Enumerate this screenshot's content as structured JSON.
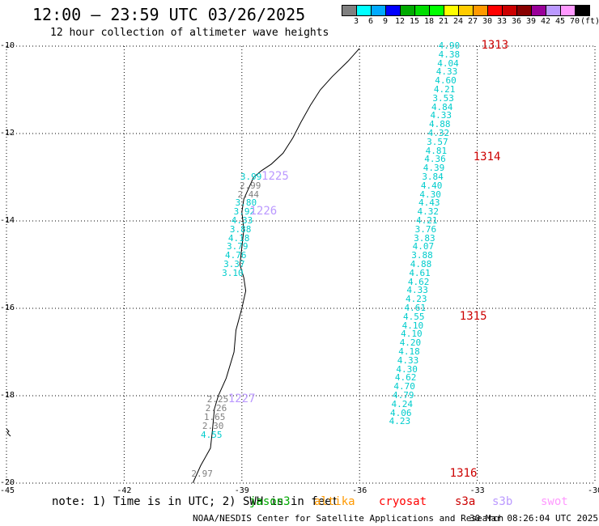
{
  "header": {
    "title": "12:00 — 23:59 UTC 03/26/2025",
    "subtitle": "12 hour collection of altimeter wave heights"
  },
  "colorbar": {
    "unit": "(ft)",
    "colors": [
      "#808080",
      "#00ffff",
      "#00aaff",
      "#0000ff",
      "#00aa00",
      "#00dd00",
      "#00ff00",
      "#ffff00",
      "#ffcc00",
      "#ff9900",
      "#ff0000",
      "#cc0000",
      "#880000",
      "#990099",
      "#bb99ff",
      "#ff99ff",
      "#000000"
    ],
    "labels": [
      "3",
      "6",
      "9",
      "12",
      "15",
      "18",
      "21",
      "24",
      "27",
      "30",
      "33",
      "36",
      "39",
      "42",
      "45",
      "70"
    ]
  },
  "map": {
    "lon_range": [
      -45,
      -30
    ],
    "lat_range": [
      -20,
      -10
    ],
    "y_ticks": [
      "-10",
      "-12",
      "-14",
      "-16",
      "-18",
      "-20"
    ],
    "x_ticks": [
      "-45",
      "-42",
      "-39",
      "-36",
      "-33",
      "-30"
    ],
    "grid": "dotted",
    "coastline_color": "#000000",
    "coastline": [
      [
        -36.0,
        -10.05
      ],
      [
        -36.3,
        -10.35
      ],
      [
        -36.7,
        -10.7
      ],
      [
        -37.0,
        -11.0
      ],
      [
        -37.25,
        -11.35
      ],
      [
        -37.5,
        -11.75
      ],
      [
        -37.7,
        -12.1
      ],
      [
        -37.95,
        -12.45
      ],
      [
        -38.25,
        -12.7
      ],
      [
        -38.5,
        -12.85
      ],
      [
        -38.7,
        -13.0
      ],
      [
        -38.8,
        -13.2
      ],
      [
        -38.95,
        -13.5
      ],
      [
        -39.0,
        -13.8
      ],
      [
        -38.95,
        -14.2
      ],
      [
        -39.0,
        -14.6
      ],
      [
        -39.05,
        -15.0
      ],
      [
        -38.95,
        -15.3
      ],
      [
        -38.9,
        -15.6
      ],
      [
        -39.0,
        -16.0
      ],
      [
        -39.15,
        -16.5
      ],
      [
        -39.2,
        -17.0
      ],
      [
        -39.4,
        -17.6
      ],
      [
        -39.6,
        -18.0
      ],
      [
        -39.7,
        -18.3
      ],
      [
        -39.75,
        -18.8
      ],
      [
        -39.8,
        -19.2
      ],
      [
        -40.05,
        -19.6
      ],
      [
        -40.25,
        -20.0
      ]
    ]
  },
  "notes": {
    "note": "note: 1) Time is in UTC; 2) SWH is in feet"
  },
  "satellites": [
    {
      "name": "jason3",
      "color": "#00aa00"
    },
    {
      "name": "altika",
      "color": "#ff9900"
    },
    {
      "name": "cryosat",
      "color": "#ff0000"
    },
    {
      "name": "s3a",
      "color": "#cc0000"
    },
    {
      "name": "s3b",
      "color": "#bb99ff"
    },
    {
      "name": "swot",
      "color": "#ff99ff"
    }
  ],
  "footer": {
    "credit": "NOAA/NESDIS Center for Satellite Applications and Research",
    "generated": "30 Mar 08:26:04 UTC 2025"
  },
  "track_labels": [
    {
      "text": "1313",
      "lon": -32.9,
      "lat": -10.0,
      "color": "#cc0000"
    },
    {
      "text": "1314",
      "lon": -33.1,
      "lat": -12.55,
      "color": "#cc0000"
    },
    {
      "text": "1315",
      "lon": -33.45,
      "lat": -16.2,
      "color": "#cc0000"
    },
    {
      "text": "1316",
      "lon": -33.7,
      "lat": -19.8,
      "color": "#cc0000"
    },
    {
      "text": "1225",
      "lon": -38.5,
      "lat": -13.0,
      "color": "#bb99ff"
    },
    {
      "text": "1226",
      "lon": -38.8,
      "lat": -13.8,
      "color": "#bb99ff"
    },
    {
      "text": "1227",
      "lon": -39.35,
      "lat": -18.1,
      "color": "#bb99ff"
    }
  ],
  "observations": [
    {
      "v": "4.90",
      "lon": -33.7,
      "lat": -10.0,
      "c": "#00cccc"
    },
    {
      "v": "4.38",
      "lon": -33.7,
      "lat": -10.2,
      "c": "#00cccc"
    },
    {
      "v": "4.04",
      "lon": -33.73,
      "lat": -10.4,
      "c": "#00cccc"
    },
    {
      "v": "4.33",
      "lon": -33.76,
      "lat": -10.6,
      "c": "#00cccc"
    },
    {
      "v": "4.60",
      "lon": -33.79,
      "lat": -10.8,
      "c": "#00cccc"
    },
    {
      "v": "4.21",
      "lon": -33.82,
      "lat": -11.0,
      "c": "#00cccc"
    },
    {
      "v": "3.53",
      "lon": -33.85,
      "lat": -11.2,
      "c": "#00cccc"
    },
    {
      "v": "4.84",
      "lon": -33.88,
      "lat": -11.4,
      "c": "#00cccc"
    },
    {
      "v": "4.33",
      "lon": -33.91,
      "lat": -11.6,
      "c": "#00cccc"
    },
    {
      "v": "4.88",
      "lon": -33.94,
      "lat": -11.8,
      "c": "#00cccc"
    },
    {
      "v": "4.32",
      "lon": -33.97,
      "lat": -12.0,
      "c": "#00cccc"
    },
    {
      "v": "3.57",
      "lon": -34.0,
      "lat": -12.2,
      "c": "#00cccc"
    },
    {
      "v": "4.81",
      "lon": -34.03,
      "lat": -12.4,
      "c": "#00cccc"
    },
    {
      "v": "4.36",
      "lon": -34.06,
      "lat": -12.6,
      "c": "#00cccc"
    },
    {
      "v": "4.39",
      "lon": -34.09,
      "lat": -12.8,
      "c": "#00cccc"
    },
    {
      "v": "3.84",
      "lon": -34.12,
      "lat": -13.0,
      "c": "#00cccc"
    },
    {
      "v": "4.40",
      "lon": -34.15,
      "lat": -13.2,
      "c": "#00cccc"
    },
    {
      "v": "4.30",
      "lon": -34.18,
      "lat": -13.4,
      "c": "#00cccc"
    },
    {
      "v": "4.43",
      "lon": -34.21,
      "lat": -13.6,
      "c": "#00cccc"
    },
    {
      "v": "4.32",
      "lon": -34.24,
      "lat": -13.8,
      "c": "#00cccc"
    },
    {
      "v": "4.21",
      "lon": -34.27,
      "lat": -14.0,
      "c": "#00cccc"
    },
    {
      "v": "3.76",
      "lon": -34.3,
      "lat": -14.2,
      "c": "#00cccc"
    },
    {
      "v": "3.83",
      "lon": -34.33,
      "lat": -14.4,
      "c": "#00cccc"
    },
    {
      "v": "4.07",
      "lon": -34.36,
      "lat": -14.6,
      "c": "#00cccc"
    },
    {
      "v": "3.88",
      "lon": -34.39,
      "lat": -14.8,
      "c": "#00cccc"
    },
    {
      "v": "4.88",
      "lon": -34.42,
      "lat": -15.0,
      "c": "#00cccc"
    },
    {
      "v": "4.61",
      "lon": -34.45,
      "lat": -15.2,
      "c": "#00cccc"
    },
    {
      "v": "4.62",
      "lon": -34.48,
      "lat": -15.4,
      "c": "#00cccc"
    },
    {
      "v": "4.33",
      "lon": -34.51,
      "lat": -15.6,
      "c": "#00cccc"
    },
    {
      "v": "4.23",
      "lon": -34.54,
      "lat": -15.8,
      "c": "#00cccc"
    },
    {
      "v": "4.61",
      "lon": -34.57,
      "lat": -16.0,
      "c": "#00cccc"
    },
    {
      "v": "4.55",
      "lon": -34.6,
      "lat": -16.2,
      "c": "#00cccc"
    },
    {
      "v": "4.10",
      "lon": -34.63,
      "lat": -16.4,
      "c": "#00cccc"
    },
    {
      "v": "4.10",
      "lon": -34.66,
      "lat": -16.6,
      "c": "#00cccc"
    },
    {
      "v": "4.20",
      "lon": -34.69,
      "lat": -16.8,
      "c": "#00cccc"
    },
    {
      "v": "4.18",
      "lon": -34.72,
      "lat": -17.0,
      "c": "#00cccc"
    },
    {
      "v": "4.33",
      "lon": -34.75,
      "lat": -17.2,
      "c": "#00cccc"
    },
    {
      "v": "4.30",
      "lon": -34.78,
      "lat": -17.4,
      "c": "#00cccc"
    },
    {
      "v": "4.62",
      "lon": -34.81,
      "lat": -17.6,
      "c": "#00cccc"
    },
    {
      "v": "4.70",
      "lon": -34.84,
      "lat": -17.8,
      "c": "#00cccc"
    },
    {
      "v": "4.79",
      "lon": -34.87,
      "lat": -18.0,
      "c": "#00cccc"
    },
    {
      "v": "4.24",
      "lon": -34.9,
      "lat": -18.2,
      "c": "#00cccc"
    },
    {
      "v": "4.06",
      "lon": -34.93,
      "lat": -18.4,
      "c": "#00cccc"
    },
    {
      "v": "4.23",
      "lon": -34.96,
      "lat": -18.6,
      "c": "#00cccc"
    },
    {
      "v": "3.99",
      "lon": -38.75,
      "lat": -13.0,
      "c": "#00cccc"
    },
    {
      "v": "2.99",
      "lon": -38.77,
      "lat": -13.2,
      "c": "#808080"
    },
    {
      "v": "2.44",
      "lon": -38.82,
      "lat": -13.4,
      "c": "#808080"
    },
    {
      "v": "3.80",
      "lon": -38.88,
      "lat": -13.6,
      "c": "#00cccc"
    },
    {
      "v": "3.92",
      "lon": -38.92,
      "lat": -13.8,
      "c": "#00cccc"
    },
    {
      "v": "4.33",
      "lon": -38.98,
      "lat": -14.0,
      "c": "#00cccc"
    },
    {
      "v": "3.88",
      "lon": -39.02,
      "lat": -14.2,
      "c": "#00cccc"
    },
    {
      "v": "4.18",
      "lon": -39.06,
      "lat": -14.4,
      "c": "#00cccc"
    },
    {
      "v": "3.79",
      "lon": -39.1,
      "lat": -14.6,
      "c": "#00cccc"
    },
    {
      "v": "4.76",
      "lon": -39.14,
      "lat": -14.8,
      "c": "#00cccc"
    },
    {
      "v": "3.37",
      "lon": -39.18,
      "lat": -15.0,
      "c": "#00cccc"
    },
    {
      "v": "3.10",
      "lon": -39.22,
      "lat": -15.2,
      "c": "#00cccc"
    },
    {
      "v": "2.25",
      "lon": -39.6,
      "lat": -18.1,
      "c": "#808080"
    },
    {
      "v": "2.26",
      "lon": -39.64,
      "lat": -18.3,
      "c": "#808080"
    },
    {
      "v": "1.65",
      "lon": -39.68,
      "lat": -18.5,
      "c": "#808080"
    },
    {
      "v": "2.30",
      "lon": -39.72,
      "lat": -18.7,
      "c": "#808080"
    },
    {
      "v": "4.55",
      "lon": -39.76,
      "lat": -18.9,
      "c": "#00cccc"
    },
    {
      "v": "2.97",
      "lon": -40.0,
      "lat": -19.8,
      "c": "#808080"
    }
  ]
}
